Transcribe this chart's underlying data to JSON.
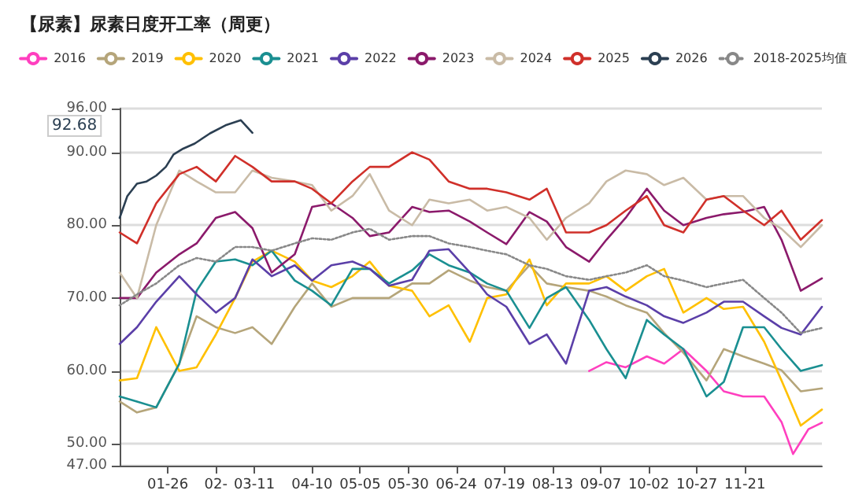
{
  "chart_data": {
    "type": "line",
    "title": "【尿素】尿素日度开工率（周更）",
    "x": [
      "--01-01",
      "--01-10",
      "--01-20",
      "--02-01",
      "--02-10",
      "--02-20",
      "--03-01",
      "--03-10",
      "--03-20",
      "--04-01",
      "--04-10",
      "--04-20",
      "--05-01",
      "--05-10",
      "--05-20",
      "--06-01",
      "--06-10",
      "--06-20",
      "--07-01",
      "--07-10",
      "--07-20",
      "--08-01",
      "--08-10",
      "--08-20",
      "--09-01",
      "--09-10",
      "--09-20",
      "--10-01",
      "--10-10",
      "--10-20",
      "--11-01",
      "--11-10",
      "--11-20",
      "--12-01",
      "--12-10",
      "--12-20",
      "--12-31"
    ],
    "series": [
      {
        "name": "2016",
        "color": "#ff3fbf",
        "x": [
          "--09-01",
          "--09-10",
          "--09-20",
          "--10-01",
          "--10-10",
          "--10-20",
          "--11-01",
          "--11-10",
          "--11-20",
          "--12-01",
          "--12-10",
          "--12-16",
          "--12-24",
          "--12-31"
        ],
        "values": [
          60,
          61.2,
          60.5,
          62,
          61,
          63,
          60,
          57.2,
          56.5,
          56.5,
          53,
          48.6,
          52,
          52.9
        ]
      },
      {
        "name": "2019",
        "color": "#b5a57a",
        "values": [
          55.8,
          54.3,
          55,
          61,
          67.5,
          66,
          65.2,
          66,
          63.7,
          68.8,
          72,
          68.8,
          70,
          70,
          70,
          72,
          72,
          73.8,
          72.4,
          71.5,
          71,
          74.5,
          72,
          71.5,
          71,
          70.2,
          69,
          68,
          65.2,
          62.5,
          58.7,
          63,
          62,
          61,
          60.1,
          57.2,
          57.6
        ]
      },
      {
        "name": "2020",
        "color": "#ffc000",
        "values": [
          58.7,
          59,
          66,
          60,
          60.5,
          65,
          70,
          75,
          76.5,
          75,
          72.4,
          71.5,
          73,
          75,
          71.7,
          71,
          67.5,
          69,
          64,
          70,
          70.5,
          75.3,
          69,
          72,
          72,
          73,
          71,
          73,
          74,
          68,
          70,
          68.5,
          68.8,
          64,
          58.7,
          52.5,
          54.7
        ]
      },
      {
        "name": "2021",
        "color": "#1a8f91",
        "values": [
          56.5,
          55.8,
          55,
          61,
          71,
          75,
          75.3,
          74.5,
          76.5,
          72.4,
          71,
          69,
          74,
          74,
          72,
          73.8,
          76,
          74.5,
          73.5,
          72,
          71,
          65.9,
          70,
          71.5,
          67,
          63,
          59,
          67,
          65,
          63,
          56.5,
          58.5,
          66,
          66,
          63,
          60,
          60.8
        ]
      },
      {
        "name": "2022",
        "color": "#5b3fa8",
        "values": [
          63.7,
          66,
          69.5,
          73,
          70.5,
          68,
          70,
          75.3,
          73,
          74.5,
          72.4,
          74.5,
          75,
          74,
          71.7,
          72.5,
          76.5,
          76.7,
          73.5,
          70.5,
          68.8,
          63.7,
          65,
          61,
          71,
          71.5,
          70.2,
          69,
          67.5,
          66.6,
          68,
          69.5,
          69.5,
          67.5,
          65.9,
          65,
          68.8
        ]
      },
      {
        "name": "2023",
        "color": "#8b1a6b",
        "values": [
          70,
          70,
          73.5,
          76,
          77.5,
          81,
          81.8,
          79.6,
          73.5,
          76,
          82.5,
          83,
          81,
          78.5,
          79,
          82.5,
          81.8,
          82,
          80.5,
          79,
          77.4,
          81.8,
          80.5,
          77,
          75,
          78,
          81,
          85,
          82,
          80,
          81,
          81.5,
          81.8,
          82.5,
          78,
          71,
          72.7
        ]
      },
      {
        "name": "2024",
        "color": "#c9bba6",
        "values": [
          73.5,
          70,
          80,
          87.5,
          86,
          84.5,
          84.5,
          87.5,
          86.5,
          86,
          85.5,
          82,
          84,
          87,
          82,
          80,
          83.5,
          83,
          83.5,
          82,
          82.5,
          81,
          78,
          81,
          83,
          86,
          87.5,
          87,
          85.5,
          86.5,
          83.5,
          84,
          84,
          81,
          79.5,
          77,
          80
        ]
      },
      {
        "name": "2025",
        "color": "#d0302a",
        "values": [
          79,
          77.5,
          83,
          87,
          88,
          86,
          89.5,
          88,
          86,
          86,
          85,
          83,
          86,
          88,
          88,
          90,
          89,
          86,
          85,
          85,
          84.5,
          83.5,
          85,
          79,
          79,
          80,
          82,
          84,
          80,
          79,
          83.5,
          84,
          82,
          80,
          82,
          78,
          80.7
        ]
      },
      {
        "name": "2026",
        "color": "#2b3f52",
        "x": [
          "--01-01",
          "--01-05",
          "--01-10",
          "--01-15",
          "--01-20",
          "--01-25",
          "--01-29",
          "--02-03",
          "--02-09",
          "--02-17",
          "--02-25",
          "--03-04",
          "--03-10"
        ],
        "values": [
          81,
          84,
          85.7,
          86,
          86.8,
          88,
          89.7,
          90.5,
          91.2,
          92.6,
          93.7,
          94.4,
          92.68
        ]
      },
      {
        "name": "2018-2025均值",
        "color": "#888888",
        "line_style": "dotted",
        "values": [
          69,
          70.5,
          72,
          74.5,
          75.5,
          75,
          77,
          77,
          76.5,
          77.5,
          78.2,
          78,
          79,
          79.5,
          78,
          78.5,
          78.5,
          77.5,
          77,
          76.5,
          76,
          74.5,
          74,
          73,
          72.5,
          73,
          73.5,
          74.5,
          73,
          72.4,
          71.5,
          72,
          72.5,
          70,
          68,
          65.2,
          65.9
        ]
      }
    ],
    "annotations": [
      "92.68"
    ],
    "xlim": [
      "--01-01",
      "--12-31"
    ],
    "xticks": [
      {
        "value": "--01-26",
        "label": "01-26"
      },
      {
        "value": "--02-20",
        "label": "02-"
      },
      {
        "value": "--03-11",
        "label": "03-11"
      },
      {
        "value": "--04-10",
        "label": "04-10"
      },
      {
        "value": "--05-05",
        "label": "05-05"
      },
      {
        "value": "--05-30",
        "label": "05-30"
      },
      {
        "value": "--06-24",
        "label": "06-24"
      },
      {
        "value": "--07-19",
        "label": "07-19"
      },
      {
        "value": "--08-13",
        "label": "08-13"
      },
      {
        "value": "--09-07",
        "label": "09-07"
      },
      {
        "value": "--10-02",
        "label": "10-02"
      },
      {
        "value": "--10-27",
        "label": "10-27"
      },
      {
        "value": "--11-21",
        "label": "11-21"
      }
    ],
    "ylim": [
      47,
      96
    ],
    "yticks": [
      {
        "value": 47,
        "label": "47.00"
      },
      {
        "value": 50,
        "label": "50.00"
      },
      {
        "value": 60,
        "label": "60.00"
      },
      {
        "value": 70,
        "label": "70.00"
      },
      {
        "value": 80,
        "label": "80.00"
      },
      {
        "value": 90,
        "label": "90.00"
      },
      {
        "value": 96,
        "label": "96.00"
      }
    ],
    "grid": "y",
    "legend": "top"
  }
}
